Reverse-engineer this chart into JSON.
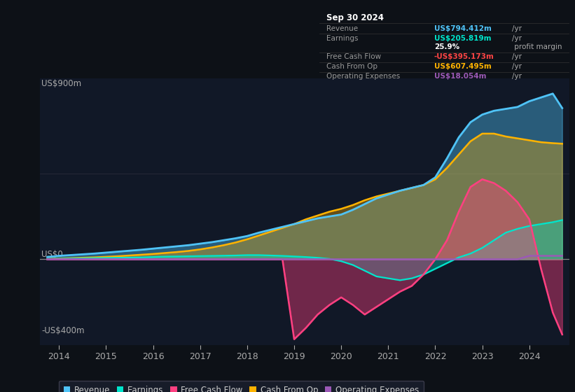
{
  "background_color": "#0d1117",
  "plot_bg_color": "#111827",
  "revenue_color": "#4fc3f7",
  "earnings_color": "#00e5cc",
  "free_cash_flow_color": "#ff4081",
  "cash_from_op_color": "#ffb300",
  "operating_expenses_color": "#9b59b6",
  "x_ticks": [
    2014,
    2015,
    2016,
    2017,
    2018,
    2019,
    2020,
    2021,
    2022,
    2023,
    2024
  ],
  "ylim": [
    -450,
    950
  ],
  "xlim_left": 2013.6,
  "xlim_right": 2024.85,
  "ylabel_top": "US$900m",
  "ylabel_zero": "US$0",
  "ylabel_bottom": "-US$400m",
  "years": [
    2013.75,
    2014.0,
    2014.25,
    2014.5,
    2014.75,
    2015.0,
    2015.25,
    2015.5,
    2015.75,
    2016.0,
    2016.25,
    2016.5,
    2016.75,
    2017.0,
    2017.25,
    2017.5,
    2017.75,
    2018.0,
    2018.25,
    2018.5,
    2018.75,
    2019.0,
    2019.25,
    2019.5,
    2019.75,
    2020.0,
    2020.25,
    2020.5,
    2020.75,
    2021.0,
    2021.25,
    2021.5,
    2021.75,
    2022.0,
    2022.25,
    2022.5,
    2022.75,
    2023.0,
    2023.25,
    2023.5,
    2023.75,
    2024.0,
    2024.25,
    2024.5,
    2024.7
  ],
  "revenue": [
    12,
    18,
    22,
    26,
    30,
    35,
    40,
    45,
    50,
    56,
    62,
    68,
    74,
    82,
    90,
    100,
    110,
    122,
    140,
    155,
    170,
    185,
    200,
    215,
    225,
    235,
    260,
    290,
    320,
    340,
    360,
    375,
    390,
    430,
    530,
    640,
    720,
    760,
    780,
    790,
    800,
    830,
    850,
    870,
    794
  ],
  "earnings": [
    2,
    3,
    4,
    5,
    6,
    7,
    8,
    9,
    10,
    12,
    14,
    15,
    16,
    17,
    18,
    19,
    20,
    22,
    22,
    20,
    18,
    15,
    12,
    8,
    2,
    -10,
    -30,
    -60,
    -90,
    -100,
    -110,
    -100,
    -80,
    -50,
    -20,
    10,
    30,
    60,
    100,
    140,
    160,
    175,
    185,
    195,
    206
  ],
  "free_cash_flow": [
    0,
    0,
    0,
    0,
    0,
    0,
    0,
    0,
    0,
    0,
    0,
    0,
    0,
    0,
    0,
    0,
    0,
    0,
    0,
    0,
    0,
    -420,
    -360,
    -290,
    -240,
    -200,
    -240,
    -290,
    -250,
    -210,
    -170,
    -140,
    -80,
    0,
    100,
    250,
    380,
    420,
    400,
    360,
    300,
    210,
    -50,
    -280,
    -395
  ],
  "cash_from_op": [
    2,
    4,
    6,
    8,
    10,
    13,
    16,
    20,
    24,
    28,
    33,
    38,
    44,
    52,
    62,
    74,
    88,
    105,
    125,
    145,
    165,
    185,
    210,
    230,
    250,
    265,
    285,
    310,
    330,
    345,
    360,
    375,
    390,
    420,
    480,
    550,
    620,
    660,
    660,
    645,
    635,
    625,
    615,
    610,
    607
  ],
  "operating_expenses": [
    0,
    0,
    0,
    0,
    0,
    0,
    0,
    0,
    0,
    0,
    0,
    0,
    0,
    0,
    0,
    0,
    0,
    0,
    0,
    0,
    0,
    0,
    0,
    0,
    0,
    0,
    0,
    0,
    0,
    0,
    0,
    0,
    0,
    0,
    0,
    0,
    0,
    0,
    0,
    0,
    0,
    18,
    18,
    18,
    18
  ],
  "info_box": {
    "title": "Sep 30 2024",
    "rows": [
      {
        "label": "Revenue",
        "value": "US$794.412m",
        "unit": "/yr",
        "color": "#4fc3f7"
      },
      {
        "label": "Earnings",
        "value": "US$205.819m",
        "unit": "/yr",
        "color": "#00e5cc"
      },
      {
        "label": "",
        "value": "25.9%",
        "unit": " profit margin",
        "color": "#ffffff"
      },
      {
        "label": "Free Cash Flow",
        "value": "-US$395.173m",
        "unit": "/yr",
        "color": "#ff4444"
      },
      {
        "label": "Cash From Op",
        "value": "US$607.495m",
        "unit": "/yr",
        "color": "#ffb300"
      },
      {
        "label": "Operating Expenses",
        "value": "US$18.054m",
        "unit": "/yr",
        "color": "#9b59b6"
      }
    ]
  },
  "legend_items": [
    {
      "label": "Revenue",
      "color": "#4fc3f7"
    },
    {
      "label": "Earnings",
      "color": "#00e5cc"
    },
    {
      "label": "Free Cash Flow",
      "color": "#ff4081"
    },
    {
      "label": "Cash From Op",
      "color": "#ffb300"
    },
    {
      "label": "Operating Expenses",
      "color": "#9b59b6"
    }
  ],
  "grid_color": "#2a2a3a",
  "zero_line_color": "#888888",
  "tick_label_color": "#aaaaaa",
  "ylabel_color": "#aaaaaa"
}
